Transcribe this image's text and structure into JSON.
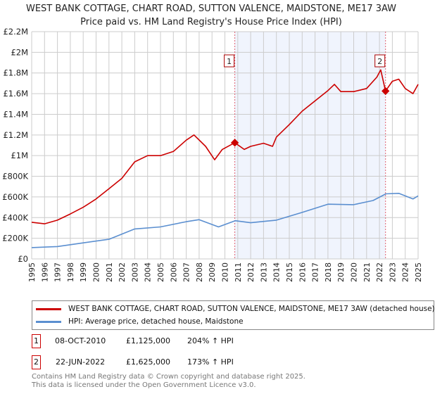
{
  "chart_data": {
    "type": "line",
    "title": "WEST BANK COTTAGE, CHART ROAD, SUTTON VALENCE, MAIDSTONE, ME17 3AW",
    "subtitle": "Price paid vs. HM Land Registry's House Price Index (HPI)",
    "xlim": [
      1995,
      2025
    ],
    "ylim": [
      0,
      2200000
    ],
    "yticks": [
      {
        "v": 0,
        "label": "£0"
      },
      {
        "v": 200000,
        "label": "£200K"
      },
      {
        "v": 400000,
        "label": "£400K"
      },
      {
        "v": 600000,
        "label": "£600K"
      },
      {
        "v": 800000,
        "label": "£800K"
      },
      {
        "v": 1000000,
        "label": "£1M"
      },
      {
        "v": 1200000,
        "label": "£1.2M"
      },
      {
        "v": 1400000,
        "label": "£1.4M"
      },
      {
        "v": 1600000,
        "label": "£1.6M"
      },
      {
        "v": 1800000,
        "label": "£1.8M"
      },
      {
        "v": 2000000,
        "label": "£2M"
      },
      {
        "v": 2200000,
        "label": "£2.2M"
      }
    ],
    "xticks": [
      "1995",
      "1996",
      "1997",
      "1998",
      "1999",
      "2000",
      "2001",
      "2002",
      "2003",
      "2004",
      "2005",
      "2006",
      "2007",
      "2008",
      "2009",
      "2010",
      "2011",
      "2012",
      "2013",
      "2014",
      "2015",
      "2016",
      "2017",
      "2018",
      "2019",
      "2020",
      "2021",
      "2022",
      "2023",
      "2024",
      "2025"
    ],
    "grid": true,
    "series": [
      {
        "name": "WEST BANK COTTAGE, CHART ROAD, SUTTON VALENCE, MAIDSTONE, ME17 3AW (detached house)",
        "color": "#cc0000",
        "x": [
          1995,
          1996,
          1997,
          1998,
          1999,
          2000,
          2001,
          2002,
          2003,
          2004,
          2005,
          2006,
          2007,
          2007.6,
          2008.5,
          2009.2,
          2009.8,
          2010.77,
          2011.5,
          2012,
          2013,
          2013.7,
          2014,
          2015,
          2016,
          2017,
          2018,
          2018.5,
          2019,
          2020,
          2021,
          2021.8,
          2022.1,
          2022.47,
          2023,
          2023.5,
          2024,
          2024.6,
          2025
        ],
        "y": [
          355000,
          340000,
          375000,
          435000,
          500000,
          580000,
          680000,
          780000,
          940000,
          1000000,
          1000000,
          1040000,
          1150000,
          1200000,
          1090000,
          960000,
          1060000,
          1125000,
          1060000,
          1090000,
          1120000,
          1090000,
          1180000,
          1300000,
          1430000,
          1530000,
          1630000,
          1690000,
          1620000,
          1620000,
          1650000,
          1760000,
          1830000,
          1625000,
          1720000,
          1740000,
          1650000,
          1600000,
          1690000
        ]
      },
      {
        "name": "HPI: Average price, detached house, Maidstone",
        "color": "#5b8fd0",
        "x": [
          1995,
          1997,
          1999,
          2001,
          2003,
          2005,
          2007,
          2008,
          2009.5,
          2010.8,
          2012,
          2014,
          2016,
          2018,
          2020,
          2021.5,
          2022.5,
          2023.5,
          2024.6,
          2025
        ],
        "y": [
          110000,
          120000,
          155000,
          190000,
          290000,
          310000,
          360000,
          380000,
          310000,
          370000,
          350000,
          375000,
          450000,
          530000,
          525000,
          565000,
          630000,
          635000,
          580000,
          610000
        ]
      }
    ],
    "annotations": [
      {
        "id": "1",
        "x": 2010.77,
        "y": 1125000,
        "date": "08-OCT-2010",
        "price": "£1,125,000",
        "hpi": "204% ↑ HPI"
      },
      {
        "id": "2",
        "x": 2022.47,
        "y": 1625000,
        "date": "22-JUN-2022",
        "price": "£1,625,000",
        "hpi": "173% ↑ HPI"
      }
    ],
    "shaded_range": [
      2010.77,
      2022.47
    ]
  },
  "legend": {
    "red_label": "WEST BANK COTTAGE, CHART ROAD, SUTTON VALENCE, MAIDSTONE, ME17 3AW (detached house)",
    "blue_label": "HPI: Average price, detached house, Maidstone"
  },
  "footer": {
    "line1": "Contains HM Land Registry data © Crown copyright and database right 2025.",
    "line2": "This data is licensed under the Open Government Licence v3.0."
  }
}
